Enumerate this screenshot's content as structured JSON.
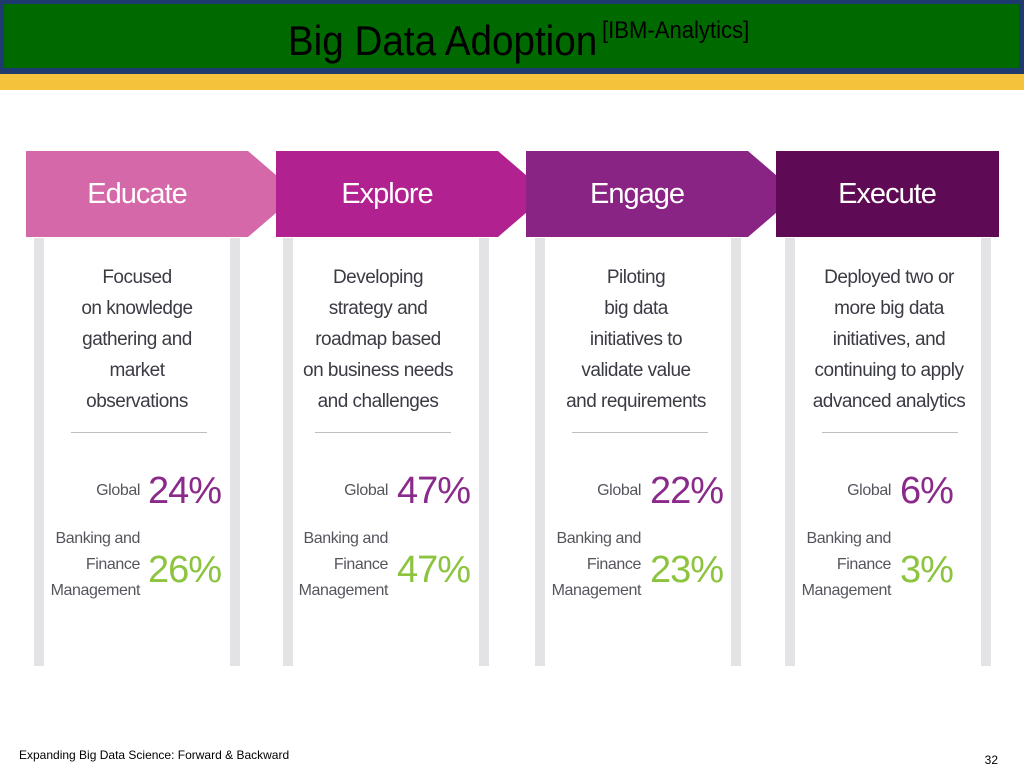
{
  "title": {
    "main": "Big Data Adoption",
    "sup": "[IBM-Analytics]"
  },
  "stages": [
    {
      "name": "Educate",
      "color": "#d468a9",
      "desc": [
        "Focused",
        "on knowledge",
        "gathering and",
        "market",
        "observations"
      ],
      "global_label": "Global",
      "global_value": "24%",
      "bank_label": [
        "Banking and",
        "Finance",
        "Management"
      ],
      "bank_value": "26%"
    },
    {
      "name": "Explore",
      "color": "#b1218f",
      "desc": [
        "Developing",
        "strategy and",
        "roadmap based",
        "on business needs",
        "and challenges"
      ],
      "global_label": "Global",
      "global_value": "47%",
      "bank_label": [
        "Banking and",
        "Finance",
        "Management"
      ],
      "bank_value": "47%"
    },
    {
      "name": "Engage",
      "color": "#8a2484",
      "desc": [
        "Piloting",
        "big data",
        "initiatives to",
        "validate value",
        "and requirements"
      ],
      "global_label": "Global",
      "global_value": "22%",
      "bank_label": [
        "Banking and",
        "Finance",
        "Management"
      ],
      "bank_value": "23%"
    },
    {
      "name": "Execute",
      "color": "#5e0a55",
      "desc": [
        "Deployed two or",
        "more big data",
        "initiatives, and",
        "continuing to apply",
        "advanced analytics"
      ],
      "global_label": "Global",
      "global_value": "6%",
      "bank_label": [
        "Banking and",
        "Finance",
        "Management"
      ],
      "bank_value": "3%"
    }
  ],
  "footer": {
    "left": "Expanding Big Data Science: Forward & Backward",
    "page": "32"
  }
}
